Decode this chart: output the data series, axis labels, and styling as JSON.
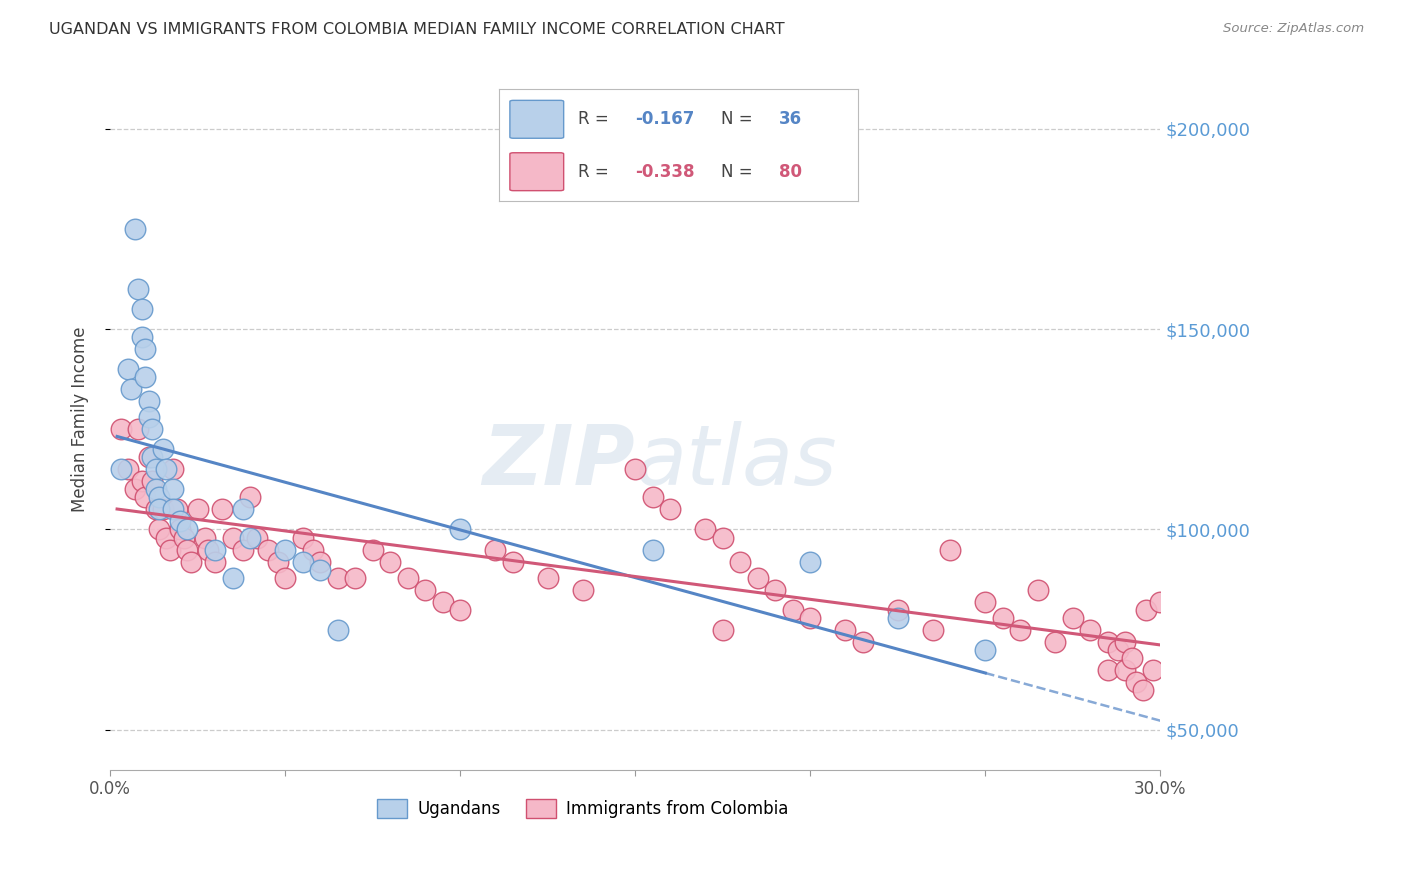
{
  "title": "UGANDAN VS IMMIGRANTS FROM COLOMBIA MEDIAN FAMILY INCOME CORRELATION CHART",
  "source": "Source: ZipAtlas.com",
  "ylabel": "Median Family Income",
  "xlim": [
    0.0,
    0.3
  ],
  "ylim": [
    40000,
    215000
  ],
  "yticks": [
    50000,
    100000,
    150000,
    200000
  ],
  "ytick_labels": [
    "$50,000",
    "$100,000",
    "$150,000",
    "$200,000"
  ],
  "xticks": [
    0.0,
    0.05,
    0.1,
    0.15,
    0.2,
    0.25,
    0.3
  ],
  "xtick_labels": [
    "0.0%",
    "",
    "",
    "",
    "",
    "",
    "30.0%"
  ],
  "watermark": "ZIPatlas",
  "color_ugandan_fill": "#b8d0ea",
  "color_ugandan_edge": "#6699cc",
  "color_colombia_fill": "#f5b8c8",
  "color_colombia_edge": "#d05070",
  "color_ugandan_line": "#5585c5",
  "color_colombia_line": "#d05878",
  "color_ytick": "#5b9bd5",
  "ugandan_x": [
    0.003,
    0.005,
    0.006,
    0.007,
    0.008,
    0.009,
    0.009,
    0.01,
    0.01,
    0.011,
    0.011,
    0.012,
    0.012,
    0.013,
    0.013,
    0.014,
    0.014,
    0.015,
    0.016,
    0.018,
    0.018,
    0.02,
    0.022,
    0.03,
    0.035,
    0.038,
    0.04,
    0.05,
    0.055,
    0.06,
    0.065,
    0.1,
    0.155,
    0.2,
    0.225,
    0.25
  ],
  "ugandan_y": [
    115000,
    140000,
    135000,
    175000,
    160000,
    155000,
    148000,
    145000,
    138000,
    132000,
    128000,
    125000,
    118000,
    115000,
    110000,
    108000,
    105000,
    120000,
    115000,
    110000,
    105000,
    102000,
    100000,
    95000,
    88000,
    105000,
    98000,
    95000,
    92000,
    90000,
    75000,
    100000,
    95000,
    92000,
    78000,
    70000
  ],
  "colombia_x": [
    0.003,
    0.005,
    0.007,
    0.008,
    0.009,
    0.01,
    0.011,
    0.012,
    0.013,
    0.014,
    0.015,
    0.016,
    0.017,
    0.018,
    0.019,
    0.02,
    0.021,
    0.022,
    0.023,
    0.025,
    0.027,
    0.028,
    0.03,
    0.032,
    0.035,
    0.038,
    0.04,
    0.042,
    0.045,
    0.048,
    0.05,
    0.055,
    0.058,
    0.06,
    0.065,
    0.07,
    0.075,
    0.08,
    0.085,
    0.09,
    0.095,
    0.1,
    0.11,
    0.115,
    0.125,
    0.135,
    0.15,
    0.155,
    0.16,
    0.17,
    0.175,
    0.175,
    0.18,
    0.185,
    0.19,
    0.195,
    0.2,
    0.21,
    0.215,
    0.225,
    0.235,
    0.24,
    0.25,
    0.255,
    0.26,
    0.265,
    0.27,
    0.275,
    0.28,
    0.285,
    0.285,
    0.288,
    0.29,
    0.29,
    0.292,
    0.293,
    0.295,
    0.296,
    0.298,
    0.3
  ],
  "colombia_y": [
    125000,
    115000,
    110000,
    125000,
    112000,
    108000,
    118000,
    112000,
    105000,
    100000,
    105000,
    98000,
    95000,
    115000,
    105000,
    100000,
    98000,
    95000,
    92000,
    105000,
    98000,
    95000,
    92000,
    105000,
    98000,
    95000,
    108000,
    98000,
    95000,
    92000,
    88000,
    98000,
    95000,
    92000,
    88000,
    88000,
    95000,
    92000,
    88000,
    85000,
    82000,
    80000,
    95000,
    92000,
    88000,
    85000,
    115000,
    108000,
    105000,
    100000,
    98000,
    75000,
    92000,
    88000,
    85000,
    80000,
    78000,
    75000,
    72000,
    80000,
    75000,
    95000,
    82000,
    78000,
    75000,
    85000,
    72000,
    78000,
    75000,
    72000,
    65000,
    70000,
    65000,
    72000,
    68000,
    62000,
    60000,
    80000,
    65000,
    82000
  ]
}
